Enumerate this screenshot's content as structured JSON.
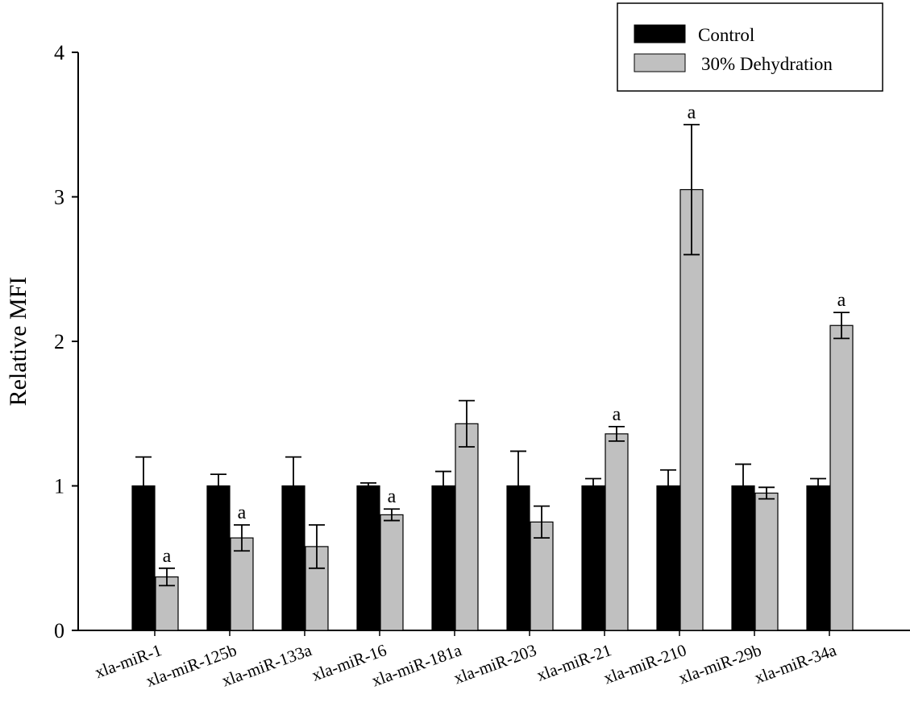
{
  "chart_data": {
    "type": "bar",
    "ylabel": "Relative MFI",
    "xlabel": "",
    "ylim": [
      0,
      4
    ],
    "yticks": [
      "0",
      "1",
      "2",
      "3",
      "4"
    ],
    "grid": false,
    "legend_position": "top-right",
    "categories": [
      "xla-miR-1",
      "xla-miR-125b",
      "xla-miR-133a",
      "xla-miR-16",
      "xla-miR-181a",
      "xla-miR-203",
      "xla-miR-21",
      "xla-miR-210",
      "xla-miR-29b",
      "xla-miR-34a"
    ],
    "series": [
      {
        "name": "Control",
        "color": "#000000",
        "values": [
          1,
          1,
          1,
          1,
          1,
          1,
          1,
          1,
          1,
          1
        ],
        "errors": [
          0.2,
          0.08,
          0.2,
          0.02,
          0.1,
          0.24,
          0.05,
          0.11,
          0.15,
          0.05
        ],
        "annotations": [
          "",
          "",
          "",
          "",
          "",
          "",
          "",
          "",
          "",
          ""
        ]
      },
      {
        "name": "30% Dehydration",
        "color": "#c0c0c0",
        "values": [
          0.37,
          0.64,
          0.58,
          0.8,
          1.43,
          0.75,
          1.36,
          3.05,
          0.95,
          2.11
        ],
        "errors": [
          0.06,
          0.09,
          0.15,
          0.04,
          0.16,
          0.11,
          0.05,
          0.45,
          0.04,
          0.09
        ],
        "annotations": [
          "a",
          "a",
          "",
          "a",
          "",
          "",
          "a",
          "a",
          "",
          "a"
        ]
      }
    ]
  }
}
